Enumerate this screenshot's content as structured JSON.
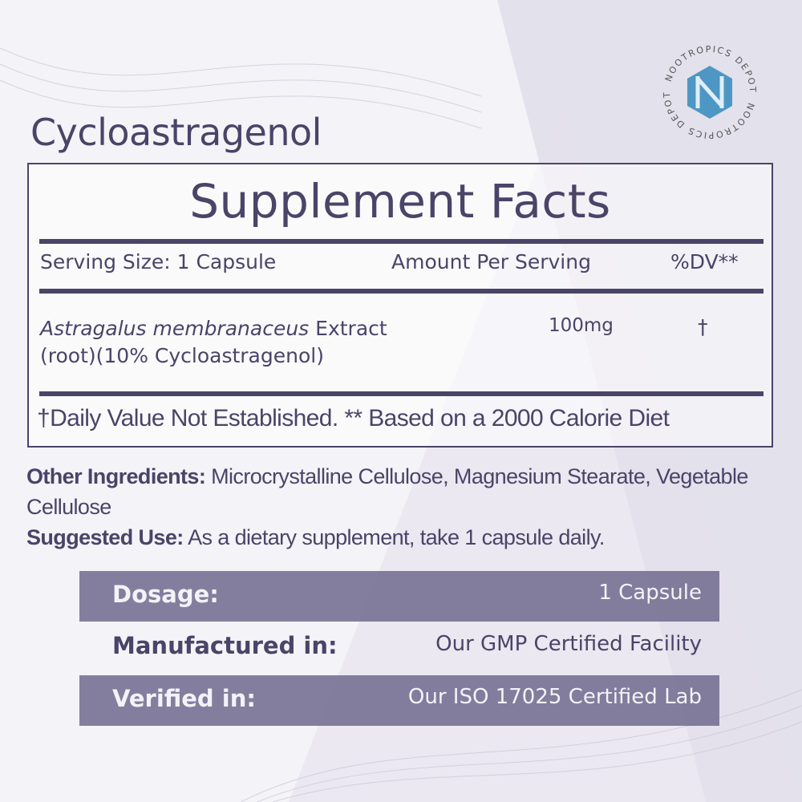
{
  "product_name": "Cycloastragenol",
  "logo": {
    "brand": "NOOTROPICS DEPOT",
    "icon": "n-hexagon-logo",
    "color": "#3f8fc0"
  },
  "colors": {
    "text": "#4a4468",
    "bar": "#70688e"
  },
  "facts": {
    "heading": "Supplement Facts",
    "serving_size": "Serving Size: 1 Capsule",
    "amount_header": "Amount Per Serving",
    "dv_header": "%DV**",
    "ingredients": [
      {
        "name_italic": "Astragalus membranaceus",
        "name_rest": " Extract",
        "detail": "(root)(10% Cycloastragenol)",
        "amount": "100mg",
        "dv": "†"
      }
    ],
    "footnote": "†Daily Value Not Established. ** Based on a 2000 Calorie Diet"
  },
  "other_ingredients": {
    "label": "Other Ingredients:",
    "text": " Microcrystalline Cellulose, Magnesium Stearate, Vegetable Cellulose"
  },
  "suggested_use": {
    "label": "Suggested Use:",
    "text": " As a dietary supplement, take 1 capsule daily."
  },
  "info_rows": [
    {
      "label": "Dosage:",
      "value": "1 Capsule"
    },
    {
      "label": "Manufactured in:",
      "value": "Our GMP Certified Facility"
    },
    {
      "label": "Verified in:",
      "value": "Our ISO 17025 Certified Lab"
    }
  ]
}
